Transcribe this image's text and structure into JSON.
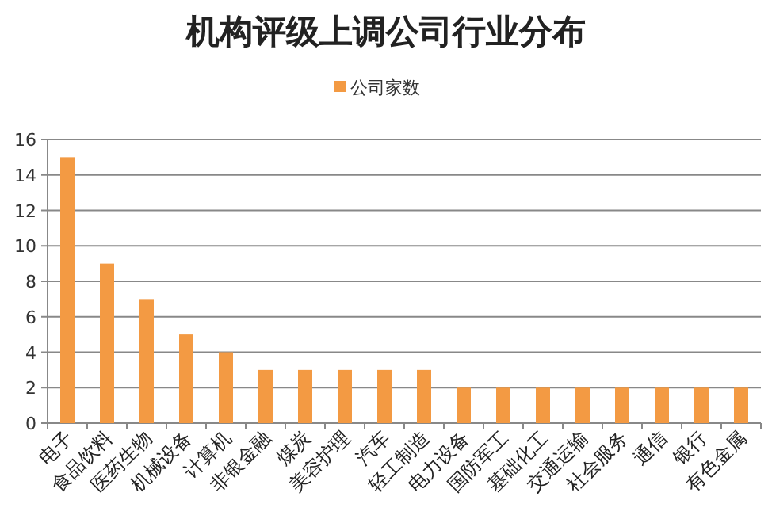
{
  "chart_data": {
    "type": "bar",
    "title": "机构评级上调公司行业分布",
    "categories": [
      "电子",
      "食品饮料",
      "医药生物",
      "机械设备",
      "计算机",
      "非银金融",
      "煤炭",
      "美容护理",
      "汽车",
      "轻工制造",
      "电力设备",
      "国防军工",
      "基础化工",
      "交通运输",
      "社会服务",
      "通信",
      "银行",
      "有色金属"
    ],
    "series": [
      {
        "name": "公司家数",
        "color": "#f39a43",
        "values": [
          15,
          9,
          7,
          5,
          4,
          3,
          3,
          3,
          3,
          3,
          2,
          2,
          2,
          2,
          2,
          2,
          2,
          2
        ]
      }
    ],
    "ylim": [
      0,
      16
    ],
    "yticks": [
      0,
      2,
      4,
      6,
      8,
      10,
      12,
      14,
      16
    ],
    "grid": "y",
    "legend": "top"
  }
}
